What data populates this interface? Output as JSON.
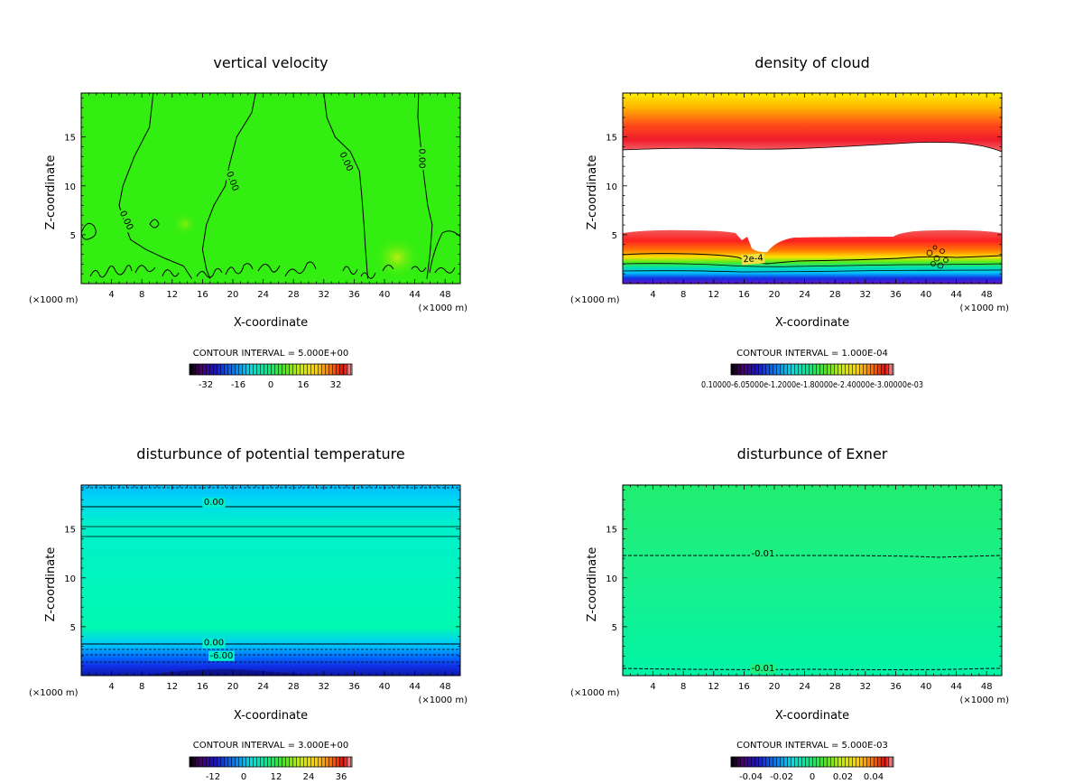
{
  "chart_data": [
    {
      "type": "heatmap",
      "title": "vertical velocity",
      "xlabel": "X-coordinate",
      "ylabel": "Z-coordinate",
      "x_unit_left": "(×1000 m)",
      "x_unit_right": "(×1000 m)",
      "xlim": [
        0,
        50
      ],
      "ylim": [
        0,
        19.5
      ],
      "x_ticks": [
        4,
        8,
        12,
        16,
        20,
        24,
        28,
        32,
        36,
        40,
        44,
        48
      ],
      "y_ticks": [
        5,
        10,
        15
      ],
      "fill_color": "#33ee11",
      "contour_interval": "CONTOUR INTERVAL = 5.000E+00",
      "colorbar_ticks": [
        "-32",
        "-16",
        "0",
        "16",
        "32"
      ],
      "contour_labels": [
        {
          "text": "0.00",
          "x": 6,
          "z": 6.5,
          "angle": 65
        },
        {
          "text": "0.00",
          "x": 20,
          "z": 10.5,
          "angle": 70
        },
        {
          "text": "0.00",
          "x": 35,
          "z": 12.5,
          "angle": 65
        },
        {
          "text": "0.00",
          "x": 45,
          "z": 12.8,
          "angle": 90
        }
      ],
      "contour_lines": [
        [
          [
            9.5,
            19.5
          ],
          [
            9,
            16
          ],
          [
            7,
            13
          ],
          [
            5.5,
            10
          ],
          [
            5,
            8
          ],
          [
            5.8,
            6
          ],
          [
            6.5,
            4.5
          ],
          [
            8.5,
            3.5
          ],
          [
            11,
            2.6
          ],
          [
            13.5,
            1.8
          ],
          [
            14.6,
            0.5
          ]
        ],
        [
          [
            23,
            19.5
          ],
          [
            22.5,
            17.5
          ],
          [
            20.5,
            15
          ],
          [
            19.5,
            12
          ],
          [
            19,
            10
          ],
          [
            17.5,
            8
          ],
          [
            16.5,
            6
          ],
          [
            16,
            3.5
          ],
          [
            16.5,
            1.5
          ],
          [
            17,
            0.5
          ]
        ],
        [
          [
            32,
            19.5
          ],
          [
            32.4,
            17
          ],
          [
            33.5,
            15
          ],
          [
            35.5,
            13.5
          ],
          [
            36.7,
            11.5
          ],
          [
            37,
            9
          ],
          [
            37.3,
            6
          ],
          [
            37.5,
            3.5
          ],
          [
            37.8,
            0.5
          ]
        ],
        [
          [
            44.5,
            19.5
          ],
          [
            44.4,
            17
          ],
          [
            44.8,
            14
          ],
          [
            45.2,
            11
          ],
          [
            45.7,
            8
          ],
          [
            46.3,
            6
          ],
          [
            46,
            3
          ],
          [
            45.6,
            0.5
          ]
        ]
      ]
    },
    {
      "type": "heatmap",
      "title": "density of cloud",
      "xlabel": "X-coordinate",
      "ylabel": "Z-coordinate",
      "x_unit_left": "(×1000 m)",
      "x_unit_right": "(×1000 m)",
      "xlim": [
        0,
        50
      ],
      "ylim": [
        0,
        19.5
      ],
      "x_ticks": [
        4,
        8,
        12,
        16,
        20,
        24,
        28,
        32,
        36,
        40,
        44,
        48
      ],
      "y_ticks": [
        5,
        10,
        15
      ],
      "contour_interval": "CONTOUR INTERVAL = 1.000E-04",
      "colorbar_tick_text": "0.10000-6.05000e-1.2000e-1.80000e-2.40000e-3.00000e-03",
      "contour_labels": [
        {
          "text": "2e-4",
          "x": 17.2,
          "z": 2.6,
          "angle": -5
        }
      ]
    },
    {
      "type": "heatmap",
      "title": "disturbunce of potential temperature",
      "xlabel": "X-coordinate",
      "ylabel": "Z-coordinate",
      "x_unit_left": "(×1000 m)",
      "x_unit_right": "(×1000 m)",
      "xlim": [
        0,
        50
      ],
      "ylim": [
        0,
        19.5
      ],
      "x_ticks": [
        4,
        8,
        12,
        16,
        20,
        24,
        28,
        32,
        36,
        40,
        44,
        48
      ],
      "y_ticks": [
        5,
        10,
        15
      ],
      "contour_interval": "CONTOUR INTERVAL = 3.000E+00",
      "colorbar_ticks": [
        "-12",
        "0",
        "12",
        "24",
        "36"
      ],
      "contour_labels": [
        {
          "text": "0.00",
          "x": 17.5,
          "z": 17.8,
          "angle": 0
        },
        {
          "text": "0.00",
          "x": 17.5,
          "z": 3.4,
          "angle": 0
        },
        {
          "text": "-6.00",
          "x": 18.5,
          "z": 2.1,
          "angle": 0
        }
      ]
    },
    {
      "type": "heatmap",
      "title": "disturbunce of Exner",
      "xlabel": "X-coordinate",
      "ylabel": "Z-coordinate",
      "x_unit_left": "(×1000 m)",
      "x_unit_right": "(×1000 m)",
      "xlim": [
        0,
        50
      ],
      "ylim": [
        0,
        19.5
      ],
      "x_ticks": [
        4,
        8,
        12,
        16,
        20,
        24,
        28,
        32,
        36,
        40,
        44,
        48
      ],
      "y_ticks": [
        5,
        10,
        15
      ],
      "contour_interval": "CONTOUR INTERVAL = 5.000E-03",
      "colorbar_ticks": [
        "-0.04",
        "-0.02",
        "0",
        "0.02",
        "0.04"
      ],
      "contour_labels": [
        {
          "text": "-0.01",
          "x": 18.5,
          "z": 12.5,
          "angle": 0
        },
        {
          "text": "-0.01",
          "x": 18.5,
          "z": 0.8,
          "angle": 0
        }
      ]
    }
  ]
}
